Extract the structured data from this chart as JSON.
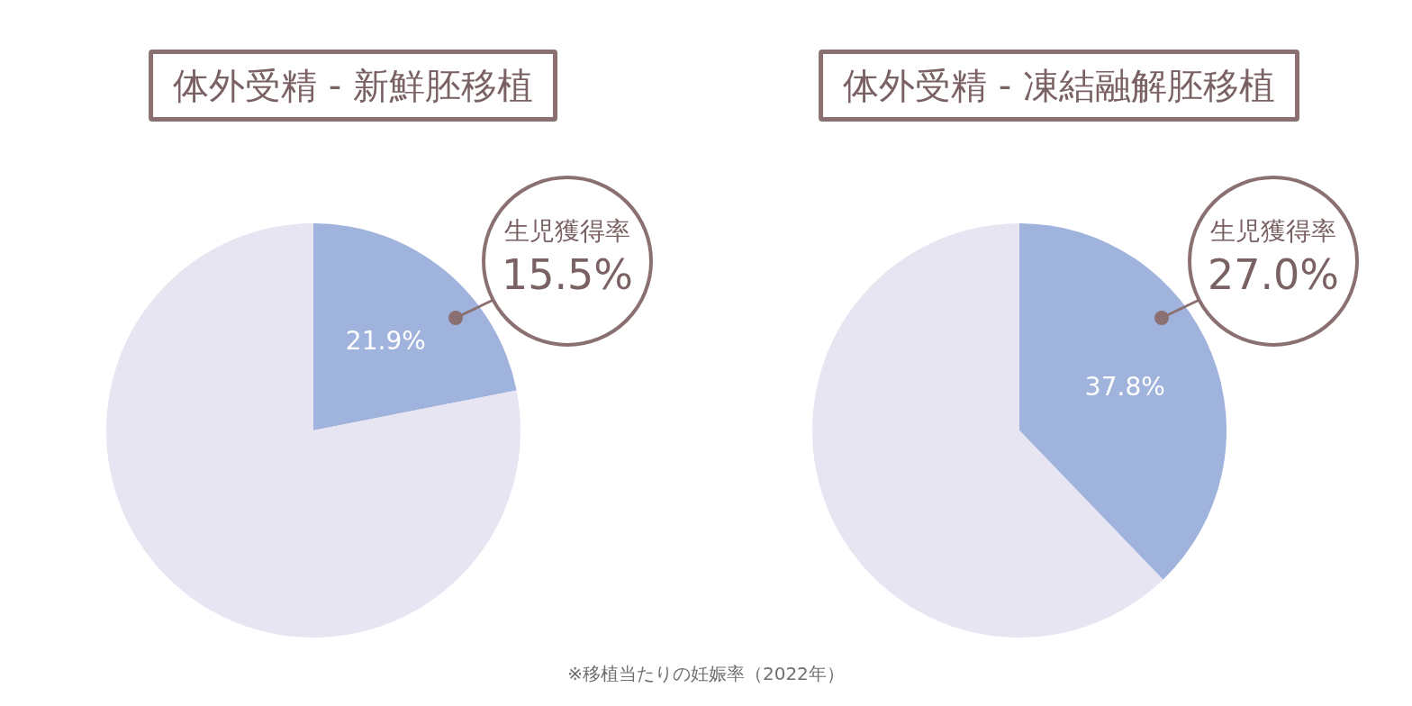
{
  "chart_data": [
    {
      "type": "pie",
      "title": "体外受精 - 新鮮胚移植",
      "categories": [
        null,
        null
      ],
      "values": [
        21.9,
        78.1
      ],
      "colors": [
        "#a0b3dd",
        "#e7e5f2"
      ],
      "value_labels": [
        "21.9%",
        null
      ],
      "annotations": [
        "生児獲得率",
        "15.5%",
        "※移植当たりの妊娠率（2022年）"
      ]
    },
    {
      "type": "pie",
      "title": "体外受精 - 凍結融解胚移植",
      "categories": [
        null,
        null
      ],
      "values": [
        37.8,
        62.2
      ],
      "colors": [
        "#a0b3dd",
        "#e7e5f2"
      ],
      "value_labels": [
        "37.8%",
        null
      ],
      "annotations": [
        "生児獲得率",
        "27.0%"
      ]
    }
  ]
}
